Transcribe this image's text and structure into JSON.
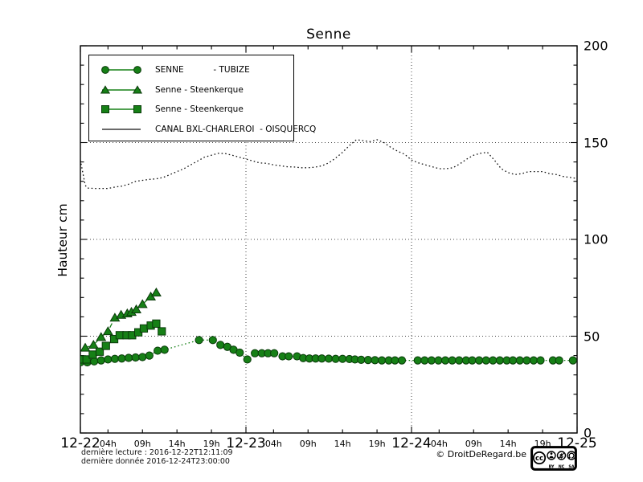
{
  "chart": {
    "title": "Senne",
    "ylabel": "Hauteur cm"
  },
  "legend": {
    "items": [
      {
        "label": "SENNE           - TUBIZE",
        "marker": "circle"
      },
      {
        "label": "Senne - Steenkerque",
        "marker": "triangle"
      },
      {
        "label": "Senne - Steenkerque",
        "marker": "square"
      },
      {
        "label": "CANAL BXL-CHARLEROI  - OISQUERCQ",
        "marker": "line"
      }
    ]
  },
  "footer": {
    "line1": "dernière lecture : 2016-12-22T12:11:09",
    "line2": "dernière donnée  2016-12-24T23:00:00",
    "copyright": "© DroitDeRegard.be",
    "cc_badge": {
      "labels": [
        "BY",
        "NC",
        "SA"
      ]
    }
  },
  "colors": {
    "series_green": "#168016",
    "marker_edge": "#0a3a0a",
    "canal_black": "#111111",
    "grid": "#444444",
    "axis": "#000000"
  },
  "chart_data": {
    "type": "line",
    "title": "Senne",
    "xlabel": "",
    "ylabel": "Hauteur cm",
    "ylim": [
      0,
      200
    ],
    "x_unit": "hours since 2016-12-22T00:00",
    "xlim_hours": [
      0,
      72
    ],
    "grid": "dotted vertical at day boundaries, dotted horizontal at 50/100/150",
    "legend_position": "upper left",
    "x_major_ticks": [
      {
        "h": 0,
        "label": "12-22"
      },
      {
        "h": 24,
        "label": "12-23"
      },
      {
        "h": 48,
        "label": "12-24"
      },
      {
        "h": 72,
        "label": "12-25"
      }
    ],
    "x_minor_ticks": [
      {
        "h": 4,
        "label": "04h"
      },
      {
        "h": 9,
        "label": "09h"
      },
      {
        "h": 14,
        "label": "14h"
      },
      {
        "h": 19,
        "label": "19h"
      },
      {
        "h": 28,
        "label": "04h"
      },
      {
        "h": 33,
        "label": "09h"
      },
      {
        "h": 38,
        "label": "14h"
      },
      {
        "h": 43,
        "label": "19h"
      },
      {
        "h": 52,
        "label": "04h"
      },
      {
        "h": 57,
        "label": "09h"
      },
      {
        "h": 62,
        "label": "14h"
      },
      {
        "h": 67,
        "label": "19h"
      }
    ],
    "y_major_ticks": [
      {
        "v": 0,
        "label": "0"
      },
      {
        "v": 50,
        "label": "50"
      },
      {
        "v": 100,
        "label": "100"
      },
      {
        "v": 150,
        "label": "150"
      },
      {
        "v": 200,
        "label": "200"
      }
    ],
    "y_minor_step": 10,
    "y_gridlines": [
      50,
      100,
      150
    ],
    "x_gridlines_hours": [
      24,
      48
    ],
    "series": [
      {
        "name": "SENNE - TUBIZE",
        "marker": "circle",
        "color": "#168016",
        "linestyle": "dotted",
        "points": [
          [
            0,
            36.5
          ],
          [
            1,
            36.5
          ],
          [
            2,
            37
          ],
          [
            3,
            37.5
          ],
          [
            4,
            38
          ],
          [
            5,
            38.3
          ],
          [
            6,
            38.5
          ],
          [
            7,
            38.8
          ],
          [
            8,
            39
          ],
          [
            9,
            39.2
          ],
          [
            10,
            40
          ],
          [
            11.2,
            42.5
          ],
          [
            12.2,
            43
          ],
          [
            17.2,
            48
          ],
          [
            19.2,
            48
          ],
          [
            20.3,
            45.5
          ],
          [
            21.3,
            44.5
          ],
          [
            22.2,
            43
          ],
          [
            23.1,
            41.5
          ],
          [
            24.2,
            38
          ],
          [
            25.3,
            41.2
          ],
          [
            26.3,
            41.2
          ],
          [
            27.2,
            41.2
          ],
          [
            28.1,
            41.2
          ],
          [
            29.3,
            39.6
          ],
          [
            30.2,
            39.6
          ],
          [
            31.4,
            39.6
          ],
          [
            32.3,
            38.7
          ],
          [
            33.2,
            38.5
          ],
          [
            34.1,
            38.5
          ],
          [
            35,
            38.5
          ],
          [
            36,
            38.4
          ],
          [
            37,
            38.3
          ],
          [
            38,
            38.3
          ],
          [
            39,
            38.2
          ],
          [
            39.8,
            38
          ],
          [
            40.7,
            37.8
          ],
          [
            41.7,
            37.7
          ],
          [
            42.7,
            37.6
          ],
          [
            43.7,
            37.5
          ],
          [
            44.7,
            37.5
          ],
          [
            45.6,
            37.5
          ],
          [
            46.6,
            37.5
          ],
          [
            48.9,
            37.5
          ],
          [
            49.9,
            37.5
          ],
          [
            50.9,
            37.5
          ],
          [
            51.9,
            37.5
          ],
          [
            52.9,
            37.5
          ],
          [
            53.9,
            37.5
          ],
          [
            54.9,
            37.5
          ],
          [
            55.9,
            37.5
          ],
          [
            56.8,
            37.5
          ],
          [
            57.8,
            37.5
          ],
          [
            58.8,
            37.5
          ],
          [
            59.8,
            37.5
          ],
          [
            60.8,
            37.5
          ],
          [
            61.8,
            37.5
          ],
          [
            62.7,
            37.5
          ],
          [
            63.7,
            37.5
          ],
          [
            64.7,
            37.5
          ],
          [
            65.7,
            37.5
          ],
          [
            66.7,
            37.5
          ],
          [
            68.5,
            37.5
          ],
          [
            69.4,
            37.5
          ],
          [
            71.4,
            37.5
          ]
        ]
      },
      {
        "name": "Senne - Steenkerque",
        "marker": "triangle",
        "color": "#168016",
        "linestyle": "dashdot",
        "points": [
          [
            0.7,
            44
          ],
          [
            1.9,
            45.5
          ],
          [
            3,
            49.5
          ],
          [
            4,
            52.5
          ],
          [
            5,
            59.5
          ],
          [
            5.9,
            61
          ],
          [
            6.8,
            61.7
          ],
          [
            7.4,
            62.5
          ],
          [
            8.1,
            63.8
          ],
          [
            9,
            66.5
          ],
          [
            10.2,
            70.4
          ],
          [
            11,
            72.5
          ]
        ]
      },
      {
        "name": "Senne - Steenkerque",
        "marker": "square",
        "color": "#168016",
        "linestyle": "solid",
        "points": [
          [
            0.2,
            38
          ],
          [
            0.9,
            38
          ],
          [
            1.8,
            40.5
          ],
          [
            2.8,
            42
          ],
          [
            3.7,
            45
          ],
          [
            4.9,
            48.5
          ],
          [
            5.7,
            50.5
          ],
          [
            6.7,
            50.5
          ],
          [
            7.5,
            50.5
          ],
          [
            8.4,
            52
          ],
          [
            9.2,
            54
          ],
          [
            10.2,
            55.5
          ],
          [
            11,
            56.5
          ],
          [
            11.8,
            52.5
          ]
        ]
      },
      {
        "name": "CANAL BXL-CHARLEROI - OISQUERCQ",
        "marker": "none",
        "color": "#111111",
        "linestyle": "dotted",
        "points": [
          [
            0,
            141
          ],
          [
            0.7,
            128
          ],
          [
            1,
            126.5
          ],
          [
            2,
            126.3
          ],
          [
            3,
            126.3
          ],
          [
            4,
            126.3
          ],
          [
            5,
            127
          ],
          [
            6,
            127.5
          ],
          [
            7,
            128.5
          ],
          [
            8,
            130
          ],
          [
            9,
            130.5
          ],
          [
            10,
            131
          ],
          [
            11,
            131.3
          ],
          [
            12,
            132
          ],
          [
            13,
            133.5
          ],
          [
            14,
            135
          ],
          [
            15,
            136.5
          ],
          [
            16,
            138.5
          ],
          [
            17,
            140.5
          ],
          [
            18,
            142.5
          ],
          [
            19,
            143.5
          ],
          [
            20,
            144.5
          ],
          [
            21,
            144.3
          ],
          [
            22,
            143.5
          ],
          [
            23,
            142.5
          ],
          [
            24,
            141.5
          ],
          [
            25,
            140.5
          ],
          [
            26,
            139.5
          ],
          [
            27,
            139.3
          ],
          [
            28,
            138.5
          ],
          [
            29,
            138
          ],
          [
            30,
            137.5
          ],
          [
            31,
            137.4
          ],
          [
            32,
            137
          ],
          [
            33,
            137
          ],
          [
            34,
            137.3
          ],
          [
            35,
            138
          ],
          [
            36,
            139.5
          ],
          [
            37,
            142
          ],
          [
            38,
            145
          ],
          [
            39,
            148.5
          ],
          [
            40,
            151.5
          ],
          [
            41,
            151
          ],
          [
            42,
            150.5
          ],
          [
            43,
            151.5
          ],
          [
            44,
            150
          ],
          [
            45,
            147.5
          ],
          [
            46,
            145.5
          ],
          [
            47,
            144
          ],
          [
            48,
            141
          ],
          [
            49,
            139.5
          ],
          [
            50,
            138.5
          ],
          [
            51,
            137.5
          ],
          [
            52,
            136.5
          ],
          [
            53,
            136.5
          ],
          [
            54,
            137
          ],
          [
            55,
            139
          ],
          [
            56,
            141.5
          ],
          [
            57,
            143.5
          ],
          [
            58,
            144.5
          ],
          [
            59,
            145
          ],
          [
            60,
            141
          ],
          [
            61,
            136.5
          ],
          [
            62,
            134.5
          ],
          [
            63,
            133.5
          ],
          [
            64,
            134
          ],
          [
            65,
            135
          ],
          [
            66,
            135
          ],
          [
            67,
            135
          ],
          [
            68,
            134
          ],
          [
            69,
            133.5
          ],
          [
            70,
            132.5
          ],
          [
            71,
            132
          ],
          [
            72,
            131.5
          ]
        ]
      }
    ]
  }
}
